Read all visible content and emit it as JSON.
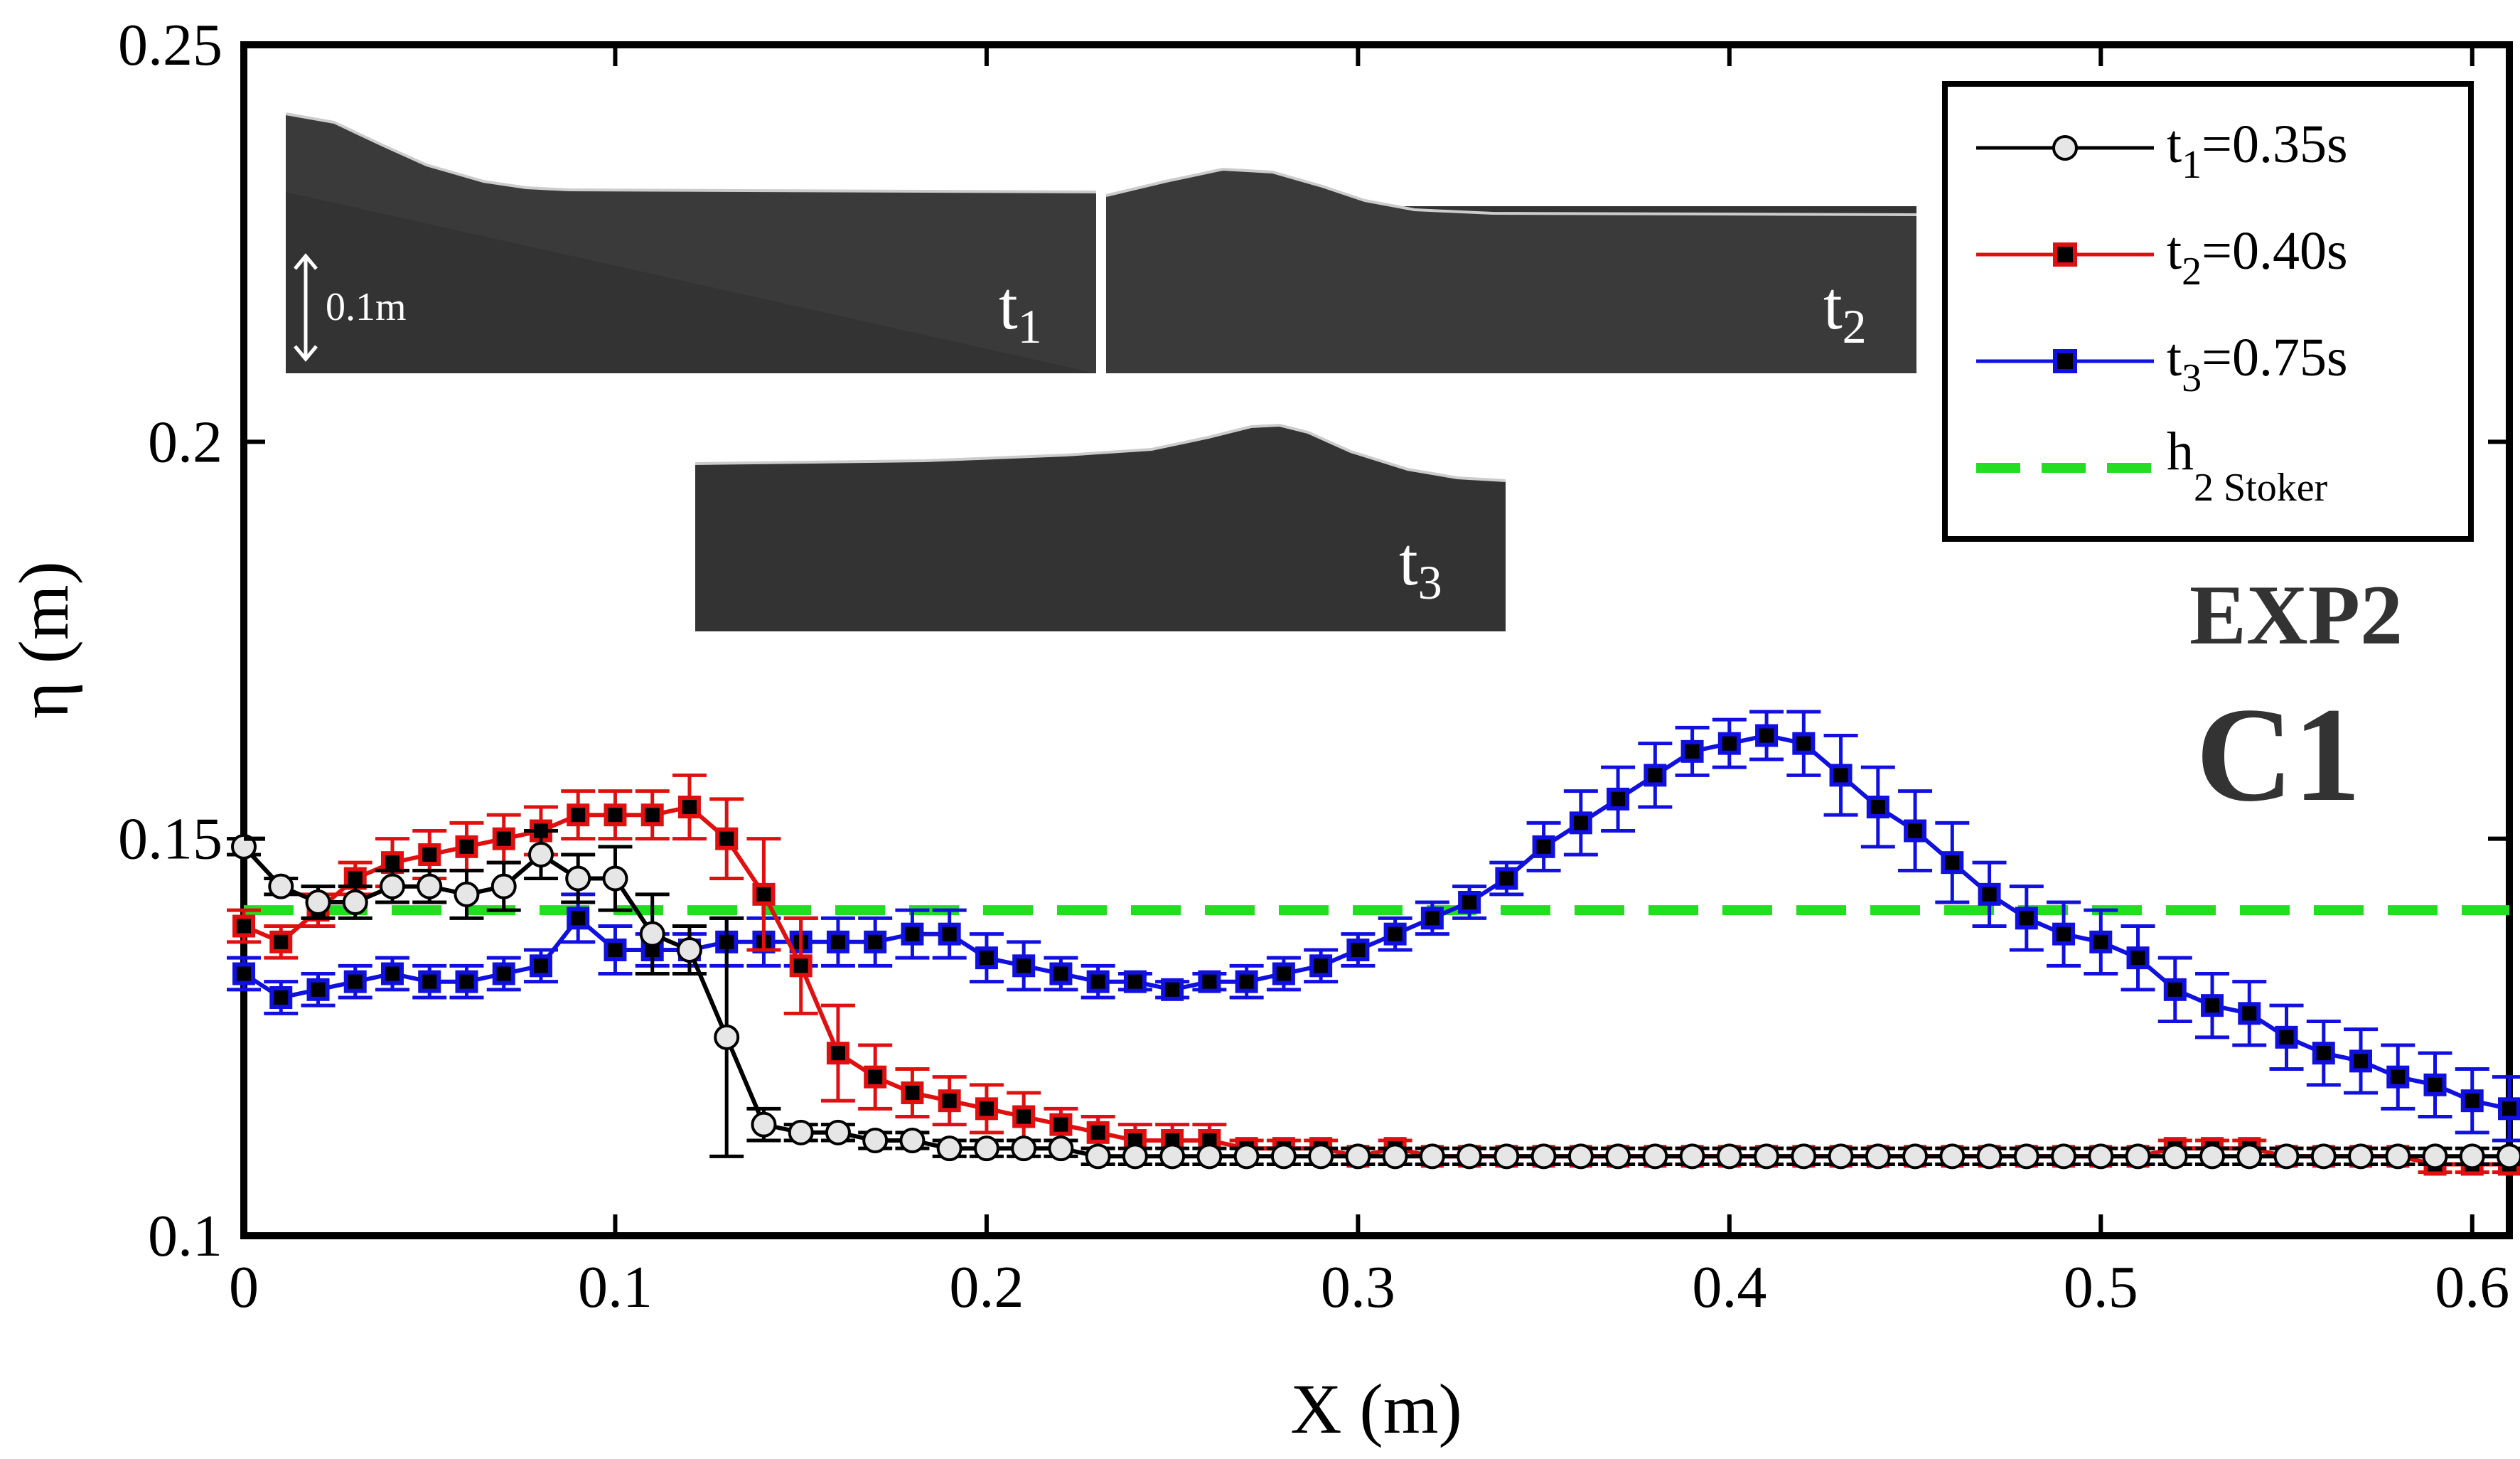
{
  "chart_data": {
    "type": "line",
    "title": "",
    "xlabel": "X (m)",
    "ylabel": "η (m)",
    "xlim": [
      0,
      0.61
    ],
    "ylim": [
      0.1,
      0.25
    ],
    "xticks": [
      "0",
      "0.1",
      "0.2",
      "0.3",
      "0.4",
      "0.5",
      "0.6"
    ],
    "yticks": [
      "0.1",
      "0.15",
      "0.2",
      "0.25"
    ],
    "legend_position": "top-right",
    "annotations": [
      "EXP2",
      "C1"
    ],
    "reference_line": {
      "name": "h",
      "subscript": "2 Stoker",
      "y": 0.141,
      "color": "#22dd22",
      "style": "dashed"
    },
    "series": [
      {
        "name": "t1=0.35s",
        "label_base": "t",
        "label_sub": "1",
        "label_rest": "=0.35s",
        "color": "#000000",
        "marker": "open-circle",
        "x": [
          0.0,
          0.01,
          0.02,
          0.03,
          0.04,
          0.05,
          0.06,
          0.07,
          0.08,
          0.09,
          0.1,
          0.11,
          0.12,
          0.13,
          0.14,
          0.15,
          0.16,
          0.17,
          0.18,
          0.19,
          0.2,
          0.21,
          0.22,
          0.23,
          0.24,
          0.25,
          0.26,
          0.27,
          0.28,
          0.29,
          0.3,
          0.31,
          0.32,
          0.33,
          0.34,
          0.35,
          0.36,
          0.37,
          0.38,
          0.39,
          0.4,
          0.41,
          0.42,
          0.43,
          0.44,
          0.45,
          0.46,
          0.47,
          0.48,
          0.49,
          0.5,
          0.51,
          0.52,
          0.53,
          0.54,
          0.55,
          0.56,
          0.57,
          0.58,
          0.59,
          0.6,
          0.61
        ],
        "y": [
          0.149,
          0.144,
          0.142,
          0.142,
          0.144,
          0.144,
          0.143,
          0.144,
          0.148,
          0.145,
          0.145,
          0.138,
          0.136,
          0.125,
          0.114,
          0.113,
          0.113,
          0.112,
          0.112,
          0.111,
          0.111,
          0.111,
          0.111,
          0.11,
          0.11,
          0.11,
          0.11,
          0.11,
          0.11,
          0.11,
          0.11,
          0.11,
          0.11,
          0.11,
          0.11,
          0.11,
          0.11,
          0.11,
          0.11,
          0.11,
          0.11,
          0.11,
          0.11,
          0.11,
          0.11,
          0.11,
          0.11,
          0.11,
          0.11,
          0.11,
          0.11,
          0.11,
          0.11,
          0.11,
          0.11,
          0.11,
          0.11,
          0.11,
          0.11,
          0.11,
          0.11,
          0.11
        ],
        "err": [
          0.001,
          0.001,
          0.002,
          0.002,
          0.002,
          0.002,
          0.003,
          0.003,
          0.003,
          0.003,
          0.004,
          0.005,
          0.003,
          0.015,
          0.002,
          0.001,
          0.001,
          0.001,
          0.001,
          0.001,
          0.001,
          0.001,
          0.001,
          0.001,
          0.001,
          0.001,
          0.001,
          0.001,
          0.001,
          0.001,
          0.001,
          0.001,
          0.001,
          0.001,
          0.001,
          0.001,
          0.001,
          0.001,
          0.001,
          0.001,
          0.001,
          0.001,
          0.001,
          0.001,
          0.001,
          0.001,
          0.001,
          0.001,
          0.001,
          0.001,
          0.001,
          0.001,
          0.001,
          0.001,
          0.001,
          0.001,
          0.001,
          0.001,
          0.001,
          0.001,
          0.001,
          0.001
        ]
      },
      {
        "name": "t2=0.40s",
        "label_base": "t",
        "label_sub": "2",
        "label_rest": "=0.40s",
        "color": "#e01010",
        "marker": "filled-square",
        "x": [
          0.0,
          0.01,
          0.02,
          0.03,
          0.04,
          0.05,
          0.06,
          0.07,
          0.08,
          0.09,
          0.1,
          0.11,
          0.12,
          0.13,
          0.14,
          0.15,
          0.16,
          0.17,
          0.18,
          0.19,
          0.2,
          0.21,
          0.22,
          0.23,
          0.24,
          0.25,
          0.26,
          0.27,
          0.28,
          0.29,
          0.3,
          0.31,
          0.32,
          0.33,
          0.34,
          0.35,
          0.36,
          0.37,
          0.38,
          0.39,
          0.4,
          0.41,
          0.42,
          0.43,
          0.44,
          0.45,
          0.46,
          0.47,
          0.48,
          0.49,
          0.5,
          0.51,
          0.52,
          0.53,
          0.54,
          0.55,
          0.56,
          0.57,
          0.58,
          0.59,
          0.6,
          0.61
        ],
        "y": [
          0.139,
          0.137,
          0.141,
          0.145,
          0.147,
          0.148,
          0.149,
          0.15,
          0.151,
          0.153,
          0.153,
          0.153,
          0.154,
          0.15,
          0.143,
          0.134,
          0.123,
          0.12,
          0.118,
          0.117,
          0.116,
          0.115,
          0.114,
          0.113,
          0.112,
          0.112,
          0.112,
          0.111,
          0.111,
          0.111,
          0.11,
          0.111,
          0.11,
          0.11,
          0.11,
          0.11,
          0.11,
          0.11,
          0.11,
          0.11,
          0.11,
          0.11,
          0.11,
          0.11,
          0.11,
          0.11,
          0.11,
          0.11,
          0.11,
          0.11,
          0.11,
          0.11,
          0.111,
          0.111,
          0.111,
          0.11,
          0.11,
          0.11,
          0.11,
          0.109,
          0.109,
          0.109
        ],
        "err": [
          0.002,
          0.002,
          0.002,
          0.002,
          0.003,
          0.003,
          0.003,
          0.003,
          0.003,
          0.003,
          0.003,
          0.003,
          0.004,
          0.005,
          0.007,
          0.006,
          0.006,
          0.004,
          0.003,
          0.003,
          0.003,
          0.003,
          0.002,
          0.002,
          0.002,
          0.002,
          0.002,
          0.001,
          0.001,
          0.001,
          0.001,
          0.001,
          0.001,
          0.001,
          0.001,
          0.001,
          0.001,
          0.001,
          0.001,
          0.001,
          0.001,
          0.001,
          0.001,
          0.001,
          0.001,
          0.001,
          0.001,
          0.001,
          0.001,
          0.001,
          0.001,
          0.001,
          0.001,
          0.001,
          0.001,
          0.001,
          0.001,
          0.001,
          0.001,
          0.001,
          0.001,
          0.001
        ]
      },
      {
        "name": "t3=0.75s",
        "label_base": "t",
        "label_sub": "3",
        "label_rest": "=0.75s",
        "color": "#1010e0",
        "marker": "filled-square",
        "x": [
          0.0,
          0.01,
          0.02,
          0.03,
          0.04,
          0.05,
          0.06,
          0.07,
          0.08,
          0.09,
          0.1,
          0.11,
          0.12,
          0.13,
          0.14,
          0.15,
          0.16,
          0.17,
          0.18,
          0.19,
          0.2,
          0.21,
          0.22,
          0.23,
          0.24,
          0.25,
          0.26,
          0.27,
          0.28,
          0.29,
          0.3,
          0.31,
          0.32,
          0.33,
          0.34,
          0.35,
          0.36,
          0.37,
          0.38,
          0.39,
          0.4,
          0.41,
          0.42,
          0.43,
          0.44,
          0.45,
          0.46,
          0.47,
          0.48,
          0.49,
          0.5,
          0.51,
          0.52,
          0.53,
          0.54,
          0.55,
          0.56,
          0.57,
          0.58,
          0.59,
          0.6,
          0.61
        ],
        "y": [
          0.133,
          0.13,
          0.131,
          0.132,
          0.133,
          0.132,
          0.132,
          0.133,
          0.134,
          0.14,
          0.136,
          0.136,
          0.136,
          0.137,
          0.137,
          0.137,
          0.137,
          0.137,
          0.138,
          0.138,
          0.135,
          0.134,
          0.133,
          0.132,
          0.132,
          0.131,
          0.132,
          0.132,
          0.133,
          0.134,
          0.136,
          0.138,
          0.14,
          0.142,
          0.145,
          0.149,
          0.152,
          0.155,
          0.158,
          0.161,
          0.162,
          0.163,
          0.162,
          0.158,
          0.154,
          0.151,
          0.147,
          0.143,
          0.14,
          0.138,
          0.137,
          0.135,
          0.131,
          0.129,
          0.128,
          0.125,
          0.123,
          0.122,
          0.12,
          0.119,
          0.117,
          0.116
        ],
        "err": [
          0.002,
          0.002,
          0.002,
          0.002,
          0.002,
          0.002,
          0.002,
          0.002,
          0.002,
          0.003,
          0.003,
          0.002,
          0.002,
          0.003,
          0.003,
          0.003,
          0.003,
          0.003,
          0.003,
          0.003,
          0.003,
          0.003,
          0.002,
          0.002,
          0.001,
          0.001,
          0.001,
          0.002,
          0.002,
          0.002,
          0.002,
          0.002,
          0.002,
          0.002,
          0.002,
          0.003,
          0.004,
          0.004,
          0.004,
          0.003,
          0.003,
          0.003,
          0.004,
          0.005,
          0.005,
          0.005,
          0.005,
          0.004,
          0.004,
          0.004,
          0.004,
          0.004,
          0.004,
          0.004,
          0.004,
          0.004,
          0.004,
          0.004,
          0.004,
          0.004,
          0.004,
          0.004
        ]
      }
    ],
    "insets": [
      {
        "label_base": "t",
        "label_sub": "1",
        "scale": "0.1m"
      },
      {
        "label_base": "t",
        "label_sub": "2"
      },
      {
        "label_base": "t",
        "label_sub": "3"
      }
    ]
  }
}
